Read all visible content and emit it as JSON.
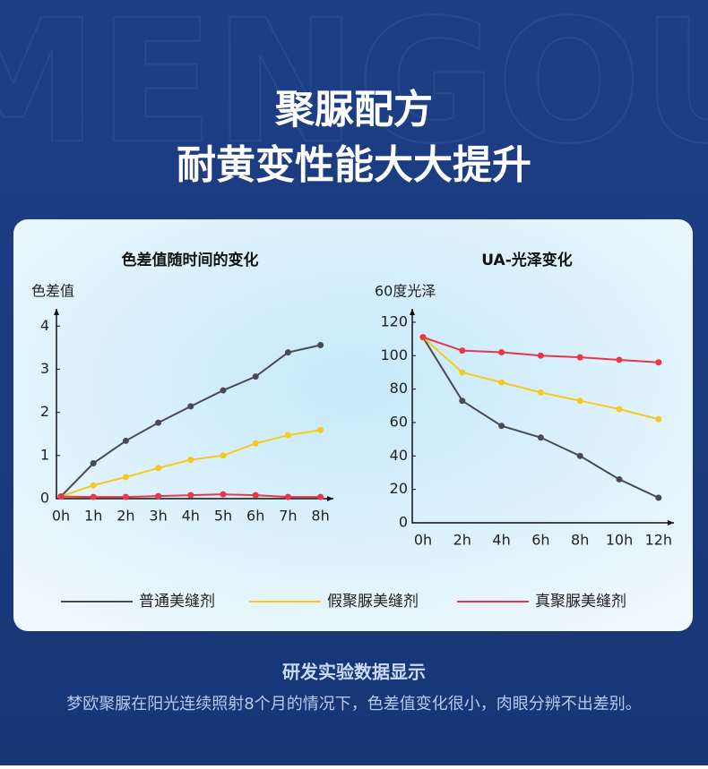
{
  "header": {
    "watermark": "MENGOU",
    "title_line1": "聚脲配方",
    "title_line2": "耐黄变性能大大提升"
  },
  "chart_data": [
    {
      "type": "line",
      "title": "色差值随时间的变化",
      "y_label": "色差值",
      "categories": [
        "0h",
        "1h",
        "2h",
        "3h",
        "4h",
        "5h",
        "6h",
        "7h",
        "8h"
      ],
      "ylim": [
        0,
        4.4
      ],
      "yticks": [
        0,
        1,
        2,
        3,
        4
      ],
      "series": [
        {
          "name": "普通美缝剂",
          "color": "#4a4a55",
          "values": [
            0.05,
            0.82,
            1.34,
            1.76,
            2.14,
            2.51,
            2.83,
            3.39,
            3.56
          ]
        },
        {
          "name": "假聚脲美缝剂",
          "color": "#f7c81e",
          "values": [
            0.05,
            0.31,
            0.5,
            0.71,
            0.9,
            1.0,
            1.28,
            1.47,
            1.59
          ]
        },
        {
          "name": "真聚脲美缝剂",
          "color": "#e8374a",
          "values": [
            0.05,
            0.04,
            0.04,
            0.06,
            0.08,
            0.1,
            0.08,
            0.04,
            0.04
          ]
        }
      ]
    },
    {
      "type": "line",
      "title": "UA-光泽变化",
      "y_label": "60度光泽",
      "categories": [
        "0h",
        "2h",
        "4h",
        "6h",
        "8h",
        "10h",
        "12h"
      ],
      "ylim": [
        0,
        128
      ],
      "yticks": [
        0,
        20,
        40,
        60,
        80,
        100,
        120
      ],
      "series": [
        {
          "color": "#4a4a55",
          "values": [
            111,
            73,
            58,
            51,
            40,
            26,
            15
          ]
        },
        {
          "color": "#f7c81e",
          "values": [
            111,
            90,
            84,
            78,
            73,
            68,
            62
          ]
        },
        {
          "color": "#e8374a",
          "values": [
            111,
            103,
            102,
            100,
            99,
            97.5,
            96
          ]
        }
      ]
    }
  ],
  "footer": {
    "heading": "研发实验数据显示",
    "text": "梦欧聚脲在阳光连续照射8个月的情况下，色差值变化很小，肉眼分辨不出差别。"
  }
}
